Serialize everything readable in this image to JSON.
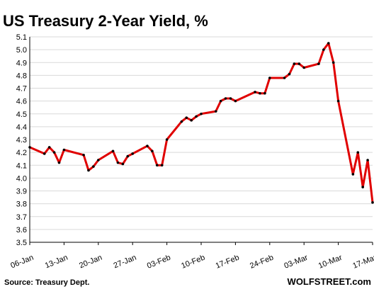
{
  "chart_data": {
    "type": "line",
    "title": "US Treasury 2-Year Yield, %",
    "source": "Source: Treasury Dept.",
    "brand": "WOLFSTREET.com",
    "xlabel": "",
    "ylabel": "",
    "ylim": [
      3.5,
      5.1
    ],
    "yticks": [
      3.5,
      3.6,
      3.7,
      3.8,
      3.9,
      4.0,
      4.1,
      4.2,
      4.3,
      4.4,
      4.5,
      4.6,
      4.7,
      4.8,
      4.9,
      5.0,
      5.1
    ],
    "ytick_labels": [
      "3.5",
      "3.6",
      "3.7",
      "3.8",
      "3.9",
      "4.0",
      "4.1",
      "4.2",
      "4.3",
      "4.4",
      "4.5",
      "4.6",
      "4.7",
      "4.8",
      "4.9",
      "5.0",
      "5.1"
    ],
    "xlim": [
      "2023-01-06",
      "2023-03-17"
    ],
    "xticks": [
      "2023-01-06",
      "2023-01-13",
      "2023-01-20",
      "2023-01-27",
      "2023-02-03",
      "2023-02-10",
      "2023-02-17",
      "2023-02-24",
      "2023-03-03",
      "2023-03-10",
      "2023-03-17"
    ],
    "xtick_labels": [
      "06-Jan",
      "13-Jan",
      "20-Jan",
      "27-Jan",
      "03-Feb",
      "10-Feb",
      "17-Feb",
      "24-Feb",
      "03-Mar",
      "10-Mar",
      "17-Mar"
    ],
    "grid": "horizontal",
    "colors": {
      "line": "#e00000",
      "marker": "#000000",
      "grid": "#d9d9d9"
    },
    "series": [
      {
        "x": [
          "2023-01-06",
          "2023-01-09",
          "2023-01-10",
          "2023-01-11",
          "2023-01-12",
          "2023-01-13",
          "2023-01-17",
          "2023-01-18",
          "2023-01-19",
          "2023-01-20",
          "2023-01-23",
          "2023-01-24",
          "2023-01-25",
          "2023-01-26",
          "2023-01-27",
          "2023-01-30",
          "2023-01-31",
          "2023-02-01",
          "2023-02-02",
          "2023-02-03",
          "2023-02-06",
          "2023-02-07",
          "2023-02-08",
          "2023-02-09",
          "2023-02-10",
          "2023-02-13",
          "2023-02-14",
          "2023-02-15",
          "2023-02-16",
          "2023-02-17",
          "2023-02-21",
          "2023-02-22",
          "2023-02-23",
          "2023-02-24",
          "2023-02-27",
          "2023-02-28",
          "2023-03-01",
          "2023-03-02",
          "2023-03-03",
          "2023-03-06",
          "2023-03-07",
          "2023-03-08",
          "2023-03-09",
          "2023-03-10",
          "2023-03-13",
          "2023-03-14",
          "2023-03-15",
          "2023-03-16",
          "2023-03-17"
        ],
        "values": [
          4.24,
          4.19,
          4.24,
          4.2,
          4.12,
          4.22,
          4.18,
          4.06,
          4.09,
          4.14,
          4.21,
          4.12,
          4.11,
          4.17,
          4.19,
          4.25,
          4.21,
          4.1,
          4.1,
          4.3,
          4.44,
          4.47,
          4.45,
          4.48,
          4.5,
          4.52,
          4.6,
          4.62,
          4.62,
          4.6,
          4.67,
          4.66,
          4.66,
          4.78,
          4.78,
          4.81,
          4.89,
          4.89,
          4.86,
          4.89,
          5.0,
          5.05,
          4.9,
          4.6,
          4.03,
          4.2,
          3.93,
          4.14,
          3.81
        ]
      }
    ]
  }
}
